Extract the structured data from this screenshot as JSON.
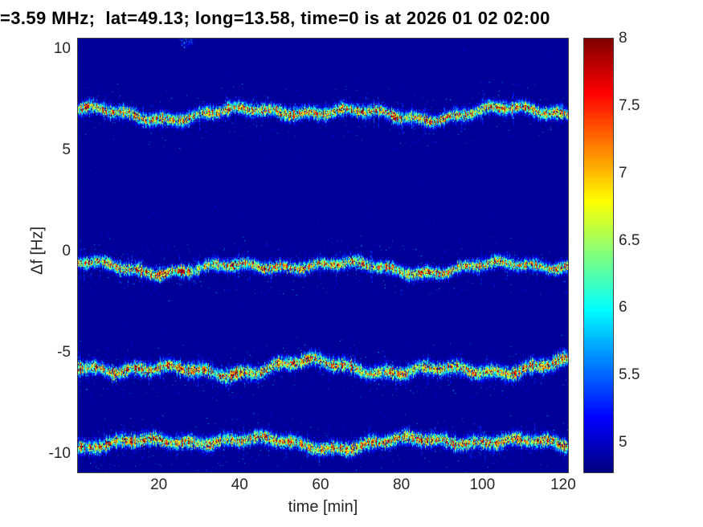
{
  "figure": {
    "background": "#ffffff"
  },
  "chart_data": {
    "type": "heatmap",
    "title": "=3.59 MHz;  lat=49.13; long=13.58, time=0 is at 2026 01 02 02:00",
    "xlabel": "time [min]",
    "ylabel": "Δf [Hz]",
    "xlim": [
      0,
      121.2
    ],
    "ylim": [
      -10.9,
      10.5
    ],
    "xticks": [
      20,
      40,
      60,
      80,
      100,
      120
    ],
    "yticks": [
      10,
      5,
      0,
      -5,
      -10
    ],
    "grid": false,
    "legend": false,
    "colormap": "jet",
    "background_value": 4.85,
    "colorbar": {
      "position": "right",
      "min": 4.78,
      "max": 8,
      "ticks": [
        8,
        7.5,
        7,
        6.5,
        6,
        5.5,
        5
      ]
    },
    "bands": [
      {
        "center_hz": 6.8,
        "wander_hz": 0.32,
        "sigma_hz": 0.17,
        "peak_value": 8.1
      },
      {
        "center_hz": -0.8,
        "wander_hz": 0.3,
        "sigma_hz": 0.16,
        "peak_value": 8.1
      },
      {
        "center_hz": -5.8,
        "wander_hz": 0.38,
        "sigma_hz": 0.19,
        "peak_value": 8.2
      },
      {
        "center_hz": -9.45,
        "wander_hz": 0.3,
        "sigma_hz": 0.18,
        "peak_value": 8.2
      }
    ],
    "artifacts": [
      {
        "x_min": 27,
        "y_hz": 10.3,
        "spread_min": 2.2,
        "spread_hz": 0.35,
        "points": 160
      }
    ]
  }
}
